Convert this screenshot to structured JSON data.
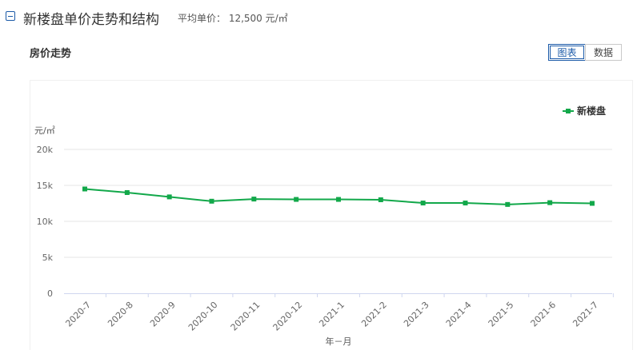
{
  "header": {
    "title": "新楼盘单价走势和结构",
    "avg_price": "平均单价： 12,500 元/㎡"
  },
  "card": {
    "title": "房价走势",
    "tabs": [
      {
        "label": "图表",
        "active": true
      },
      {
        "label": "数据",
        "active": false
      }
    ]
  },
  "colors": {
    "accent": "#1b5aa8",
    "series": "#12a84a",
    "grid": "#e6e6e6",
    "axis": "#cfd6ef"
  },
  "chart_data": {
    "type": "line",
    "ylabel": "元/㎡",
    "xlabel": "年－月",
    "ylim": [
      0,
      20000
    ],
    "yticks": [
      0,
      5000,
      10000,
      15000,
      20000
    ],
    "ytick_labels": [
      "0",
      "5k",
      "10k",
      "15k",
      "20k"
    ],
    "grid": true,
    "legend_position": "top-right",
    "categories": [
      "2020-7",
      "2020-8",
      "2020-9",
      "2020-10",
      "2020-11",
      "2020-12",
      "2021-1",
      "2021-2",
      "2021-3",
      "2021-4",
      "2021-5",
      "2021-6",
      "2021-7"
    ],
    "series": [
      {
        "name": "新楼盘",
        "values": [
          14500,
          14000,
          13400,
          12800,
          13100,
          13050,
          13050,
          13000,
          12550,
          12550,
          12350,
          12600,
          12500
        ]
      }
    ]
  }
}
